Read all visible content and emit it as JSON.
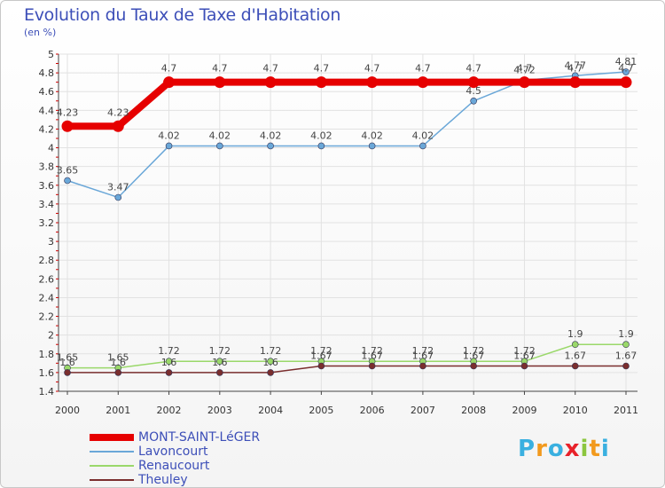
{
  "chart_data": {
    "type": "line",
    "title": "Evolution du Taux de Taxe d'Habitation",
    "ylabel": "(en %)",
    "xlabel": "",
    "ylim": [
      1.4,
      5.0
    ],
    "yticks": [
      "1.4",
      "1.6",
      "1.8",
      "2",
      "2.2",
      "2.4",
      "2.6",
      "2.8",
      "3",
      "3.2",
      "3.4",
      "3.6",
      "3.8",
      "4",
      "4.2",
      "4.4",
      "4.6",
      "4.8",
      "5"
    ],
    "categories": [
      "2000",
      "2001",
      "2002",
      "2003",
      "2004",
      "2005",
      "2006",
      "2007",
      "2008",
      "2009",
      "2010",
      "2011"
    ],
    "series": [
      {
        "name": "MONT-SAINT-LéGER",
        "color": "#e60000",
        "values": [
          4.23,
          4.23,
          4.7,
          4.7,
          4.7,
          4.7,
          4.7,
          4.7,
          4.7,
          4.7,
          4.7,
          4.7
        ],
        "labels": [
          "4.23",
          "4.23",
          "4.7",
          "4.7",
          "4.7",
          "4.7",
          "4.7",
          "4.7",
          "4.7",
          "4.7",
          "4.7",
          "4.7"
        ],
        "thick": true
      },
      {
        "name": "Lavoncourt",
        "color": "#6aa7d8",
        "values": [
          3.65,
          3.47,
          4.02,
          4.02,
          4.02,
          4.02,
          4.02,
          4.02,
          4.5,
          4.72,
          4.77,
          4.81
        ],
        "labels": [
          "3.65",
          "3.47",
          "4.02",
          "4.02",
          "4.02",
          "4.02",
          "4.02",
          "4.02",
          "4.5",
          "4.72",
          "4.77",
          "4.81"
        ]
      },
      {
        "name": "Renaucourt",
        "color": "#9ad86a",
        "values": [
          1.65,
          1.65,
          1.72,
          1.72,
          1.72,
          1.72,
          1.72,
          1.72,
          1.72,
          1.72,
          1.9,
          1.9
        ],
        "labels": [
          "1.65",
          "1.65",
          "1.72",
          "1.72",
          "1.72",
          "1.72",
          "1.72",
          "1.72",
          "1.72",
          "1.72",
          "1.9",
          "1.9"
        ]
      },
      {
        "name": "Theuley",
        "color": "#7a2e2e",
        "values": [
          1.6,
          1.6,
          1.6,
          1.6,
          1.6,
          1.67,
          1.67,
          1.67,
          1.67,
          1.67,
          1.67,
          1.67
        ],
        "labels": [
          "1.6",
          "1.6",
          "1.6",
          "1.6",
          "1.6",
          "1.67",
          "1.67",
          "1.67",
          "1.67",
          "1.67",
          "1.67",
          "1.67"
        ]
      }
    ],
    "legend_position": "bottom-left"
  },
  "branding": {
    "logo_text": "Proxiti",
    "logo_letters": [
      "P",
      "r",
      "o",
      "x",
      "i",
      "t",
      "i"
    ],
    "logo_colors": [
      "#3ab0e0",
      "#f29a1e",
      "#3ab0e0",
      "#e8222a",
      "#8cc63f",
      "#f29a1e",
      "#3ab0e0"
    ]
  }
}
